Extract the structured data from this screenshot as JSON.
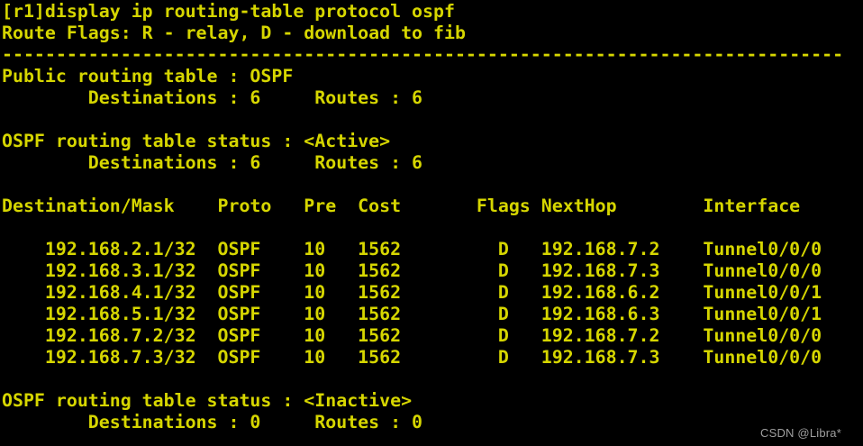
{
  "terminal": {
    "colors": {
      "background": "#000000",
      "text": "#d6d600"
    },
    "command": "[r1]display ip routing-table protocol ospf",
    "route_flags": "Route Flags: R - relay, D - download to fib",
    "separator": "------------------------------------------------------------------------------",
    "public_table": {
      "title": "Public routing table : OSPF",
      "destinations": "Destinations : 6",
      "routes": "Routes : 6"
    },
    "active_section": {
      "status": "OSPF routing table status : <Active>",
      "destinations": "Destinations : 6",
      "routes": "Routes : 6"
    },
    "table": {
      "headers": {
        "destination": "Destination/Mask",
        "proto": "Proto",
        "pre": "Pre",
        "cost": "Cost",
        "flags": "Flags",
        "nexthop": "NextHop",
        "interface": "Interface"
      },
      "rows": [
        {
          "destination": "192.168.2.1/32",
          "proto": "OSPF",
          "pre": "10",
          "cost": "1562",
          "flags": "D",
          "nexthop": "192.168.7.2",
          "interface": "Tunnel0/0/0"
        },
        {
          "destination": "192.168.3.1/32",
          "proto": "OSPF",
          "pre": "10",
          "cost": "1562",
          "flags": "D",
          "nexthop": "192.168.7.3",
          "interface": "Tunnel0/0/0"
        },
        {
          "destination": "192.168.4.1/32",
          "proto": "OSPF",
          "pre": "10",
          "cost": "1562",
          "flags": "D",
          "nexthop": "192.168.6.2",
          "interface": "Tunnel0/0/1"
        },
        {
          "destination": "192.168.5.1/32",
          "proto": "OSPF",
          "pre": "10",
          "cost": "1562",
          "flags": "D",
          "nexthop": "192.168.6.3",
          "interface": "Tunnel0/0/1"
        },
        {
          "destination": "192.168.7.2/32",
          "proto": "OSPF",
          "pre": "10",
          "cost": "1562",
          "flags": "D",
          "nexthop": "192.168.7.2",
          "interface": "Tunnel0/0/0"
        },
        {
          "destination": "192.168.7.3/32",
          "proto": "OSPF",
          "pre": "10",
          "cost": "1562",
          "flags": "D",
          "nexthop": "192.168.7.3",
          "interface": "Tunnel0/0/0"
        }
      ]
    },
    "inactive_section": {
      "status": "OSPF routing table status : <Inactive>",
      "destinations": "Destinations : 0",
      "routes": "Routes : 0"
    }
  },
  "watermark": {
    "text": "CSDN @Libra*"
  }
}
